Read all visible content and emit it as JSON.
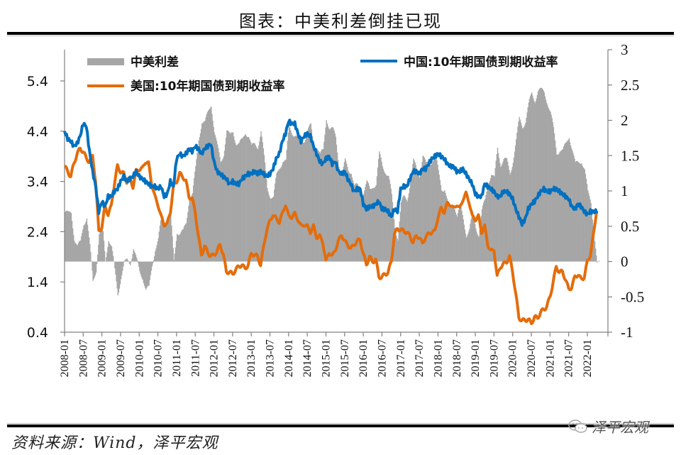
{
  "header": {
    "title": "图表：中美利差倒挂已现"
  },
  "footer": {
    "source": "资料来源：Wind，泽平宏观",
    "watermark": "泽平宏观",
    "watermark_icon": "wechat-icon"
  },
  "colors": {
    "spread": "#A6A6A6",
    "cn": "#0070C0",
    "us": "#E46C0A",
    "axis": "#808080"
  },
  "chart_data": {
    "type": "line",
    "title": "图表：中美利差倒挂已现",
    "xlabel": "",
    "ylabel_left": "",
    "ylabel_right": "",
    "x_start": "2008-01",
    "x_frequency": "monthly",
    "x_tick_labels": [
      "2008-01",
      "2008-07",
      "2009-01",
      "2009-07",
      "2010-01",
      "2010-07",
      "2011-01",
      "2011-07",
      "2012-01",
      "2012-07",
      "2013-01",
      "2013-07",
      "2014-01",
      "2014-07",
      "2015-01",
      "2015-07",
      "2016-01",
      "2016-07",
      "2017-01",
      "2017-07",
      "2018-01",
      "2018-07",
      "2019-01",
      "2019-07",
      "2020-01",
      "2020-07",
      "2021-01",
      "2021-07",
      "2022-01"
    ],
    "ylim_left": [
      0.4,
      6.0
    ],
    "yticks_left": [
      "0.4",
      "1.4",
      "2.4",
      "3.4",
      "4.4",
      "5.4"
    ],
    "ylim_right": [
      -1,
      3
    ],
    "yticks_right": [
      "-1",
      "-0.5",
      "0",
      "0.5",
      "1",
      "1.5",
      "2",
      "2.5",
      "3"
    ],
    "grid": false,
    "legend": [
      {
        "name": "中美利差",
        "kind": "area",
        "axis": "right"
      },
      {
        "name": "中国:10年期国债到期收益率",
        "kind": "line",
        "axis": "left"
      },
      {
        "name": "美国:10年期国债到期收益率",
        "kind": "line",
        "axis": "left"
      }
    ],
    "legend_placement": "top",
    "series": [
      {
        "name": "中国:10年期国债到期收益率",
        "axis": "left",
        "values": [
          4.4,
          4.25,
          4.2,
          4.1,
          4.15,
          4.3,
          4.55,
          4.5,
          4.0,
          3.6,
          3.3,
          2.8,
          3.0,
          2.9,
          3.1,
          3.1,
          3.2,
          3.25,
          3.4,
          3.5,
          3.4,
          3.45,
          3.5,
          3.6,
          3.5,
          3.45,
          3.4,
          3.35,
          3.3,
          3.3,
          3.25,
          3.3,
          3.1,
          3.15,
          3.4,
          3.3,
          3.85,
          3.95,
          3.9,
          3.95,
          4.05,
          4.0,
          4.1,
          4.05,
          3.95,
          4.05,
          4.1,
          4.15,
          3.8,
          3.6,
          3.55,
          3.5,
          3.45,
          3.35,
          3.4,
          3.35,
          3.35,
          3.45,
          3.5,
          3.55,
          3.55,
          3.6,
          3.55,
          3.6,
          3.55,
          3.5,
          3.55,
          3.65,
          3.85,
          3.95,
          4.2,
          4.35,
          4.6,
          4.55,
          4.55,
          4.35,
          4.2,
          4.3,
          4.35,
          4.3,
          4.1,
          3.95,
          3.8,
          3.75,
          3.85,
          3.9,
          3.75,
          3.8,
          3.6,
          3.55,
          3.6,
          3.45,
          3.35,
          3.2,
          3.25,
          3.25,
          2.95,
          2.85,
          2.9,
          2.9,
          2.95,
          3.0,
          2.85,
          2.85,
          2.8,
          2.7,
          2.85,
          2.8,
          3.25,
          3.3,
          3.3,
          3.45,
          3.6,
          3.6,
          3.55,
          3.65,
          3.65,
          3.75,
          3.85,
          3.9,
          3.95,
          3.9,
          3.85,
          3.75,
          3.7,
          3.7,
          3.6,
          3.6,
          3.65,
          3.55,
          3.45,
          3.35,
          3.15,
          3.1,
          3.1,
          3.35,
          3.3,
          3.25,
          3.2,
          3.1,
          3.1,
          3.2,
          3.2,
          3.15,
          3.05,
          2.85,
          2.7,
          2.55,
          2.65,
          2.85,
          2.95,
          3.0,
          3.1,
          3.2,
          3.25,
          3.2,
          3.2,
          3.25,
          3.25,
          3.2,
          3.15,
          3.1,
          3.05,
          2.9,
          2.85,
          2.95,
          2.9,
          2.8,
          2.75,
          2.8,
          2.8,
          2.8
        ]
      },
      {
        "name": "美国:10年期国债到期收益率",
        "axis": "left",
        "values": [
          3.7,
          3.6,
          3.5,
          3.75,
          3.95,
          4.05,
          4.0,
          3.85,
          3.8,
          3.9,
          3.4,
          2.4,
          2.5,
          2.9,
          2.75,
          2.9,
          3.35,
          3.7,
          3.6,
          3.55,
          3.4,
          3.45,
          3.3,
          3.6,
          3.65,
          3.65,
          3.8,
          3.75,
          3.35,
          3.1,
          2.95,
          2.7,
          2.55,
          2.55,
          2.8,
          3.3,
          3.4,
          3.55,
          3.5,
          3.4,
          3.1,
          3.05,
          2.8,
          2.3,
          1.95,
          2.1,
          2.0,
          1.9,
          1.95,
          2.0,
          2.15,
          1.95,
          1.6,
          1.6,
          1.55,
          1.65,
          1.7,
          1.75,
          1.65,
          1.75,
          1.95,
          1.95,
          1.9,
          1.75,
          2.1,
          2.45,
          2.6,
          2.75,
          2.65,
          2.6,
          2.75,
          2.95,
          2.7,
          2.7,
          2.75,
          2.65,
          2.5,
          2.55,
          2.5,
          2.4,
          2.5,
          2.3,
          2.3,
          2.2,
          1.8,
          2.0,
          1.9,
          2.05,
          2.2,
          2.35,
          2.2,
          2.15,
          2.05,
          2.15,
          2.2,
          2.25,
          1.95,
          1.75,
          1.9,
          1.8,
          1.85,
          1.5,
          1.5,
          1.55,
          1.6,
          1.8,
          2.35,
          2.45,
          2.45,
          2.4,
          2.4,
          2.3,
          2.2,
          2.3,
          2.3,
          2.15,
          2.3,
          2.35,
          2.4,
          2.4,
          2.7,
          2.85,
          2.8,
          2.95,
          2.95,
          2.85,
          2.95,
          2.85,
          3.05,
          3.15,
          3.0,
          2.7,
          2.65,
          2.7,
          2.4,
          2.5,
          2.15,
          2.0,
          2.05,
          1.5,
          1.7,
          1.75,
          1.8,
          1.9,
          1.6,
          1.15,
          0.7,
          0.62,
          0.65,
          0.65,
          0.58,
          0.7,
          0.68,
          0.8,
          0.85,
          0.92,
          1.1,
          1.4,
          1.7,
          1.6,
          1.6,
          1.45,
          1.25,
          1.3,
          1.5,
          1.55,
          1.45,
          1.5,
          1.8,
          1.95,
          2.35,
          2.85
        ]
      },
      {
        "name": "中美利差",
        "axis": "right",
        "derived": "中国 minus 美国 (percentage points)"
      }
    ]
  }
}
